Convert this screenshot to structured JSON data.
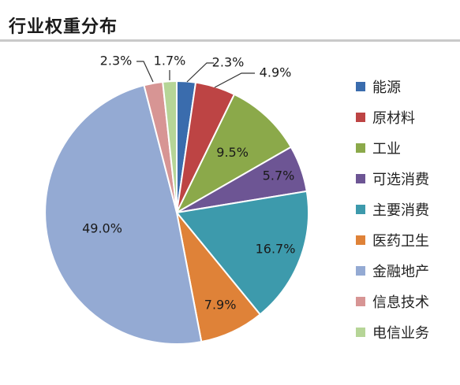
{
  "chart_title": "行业权重分布",
  "chart_data": {
    "type": "pie",
    "title": "行业权重分布",
    "legend_position": "right",
    "slices": [
      {
        "label": "能源",
        "value": 2.3,
        "display": "2.3%",
        "color": "#3a6cad"
      },
      {
        "label": "原材料",
        "value": 4.9,
        "display": "4.9%",
        "color": "#bd4444"
      },
      {
        "label": "工业",
        "value": 9.5,
        "display": "9.5%",
        "color": "#8ba94a"
      },
      {
        "label": "可选消费",
        "value": 5.7,
        "display": "5.7%",
        "color": "#6d5594"
      },
      {
        "label": "主要消费",
        "value": 16.7,
        "display": "16.7%",
        "color": "#3d9aac"
      },
      {
        "label": "医药卫生",
        "value": 7.9,
        "display": "7.9%",
        "color": "#df8238"
      },
      {
        "label": "金融地产",
        "value": 49.0,
        "display": "49.0%",
        "color": "#94aad3"
      },
      {
        "label": "信息技术",
        "value": 2.3,
        "display": "2.3%",
        "color": "#d79594"
      },
      {
        "label": "电信业务",
        "value": 1.7,
        "display": "1.7%",
        "color": "#b6d597"
      }
    ]
  }
}
